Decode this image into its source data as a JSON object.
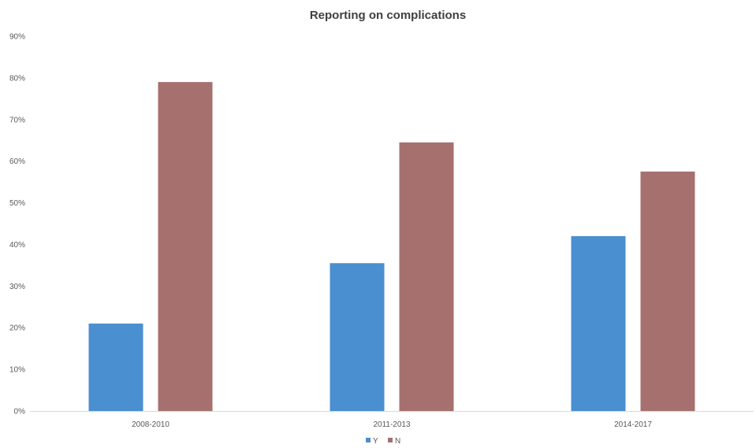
{
  "chart_data": {
    "type": "bar",
    "title": "Reporting on complications",
    "xlabel": "",
    "ylabel": "",
    "categories": [
      "2008-2010",
      "2011-2013",
      "2014-2017"
    ],
    "series": [
      {
        "name": "Y",
        "values": [
          21,
          35.5,
          42
        ],
        "color": "#4a8fcf"
      },
      {
        "name": "N",
        "values": [
          79,
          64.5,
          57.5
        ],
        "color": "#a5706e"
      }
    ],
    "ylim": [
      0,
      90
    ],
    "yticks": [
      0,
      10,
      20,
      30,
      40,
      50,
      60,
      70,
      80,
      90
    ],
    "ytick_labels": [
      "0%",
      "10%",
      "20%",
      "30%",
      "40%",
      "50%",
      "60%",
      "70%",
      "80%",
      "90%"
    ],
    "grid": false,
    "legend": "bottom-center"
  }
}
